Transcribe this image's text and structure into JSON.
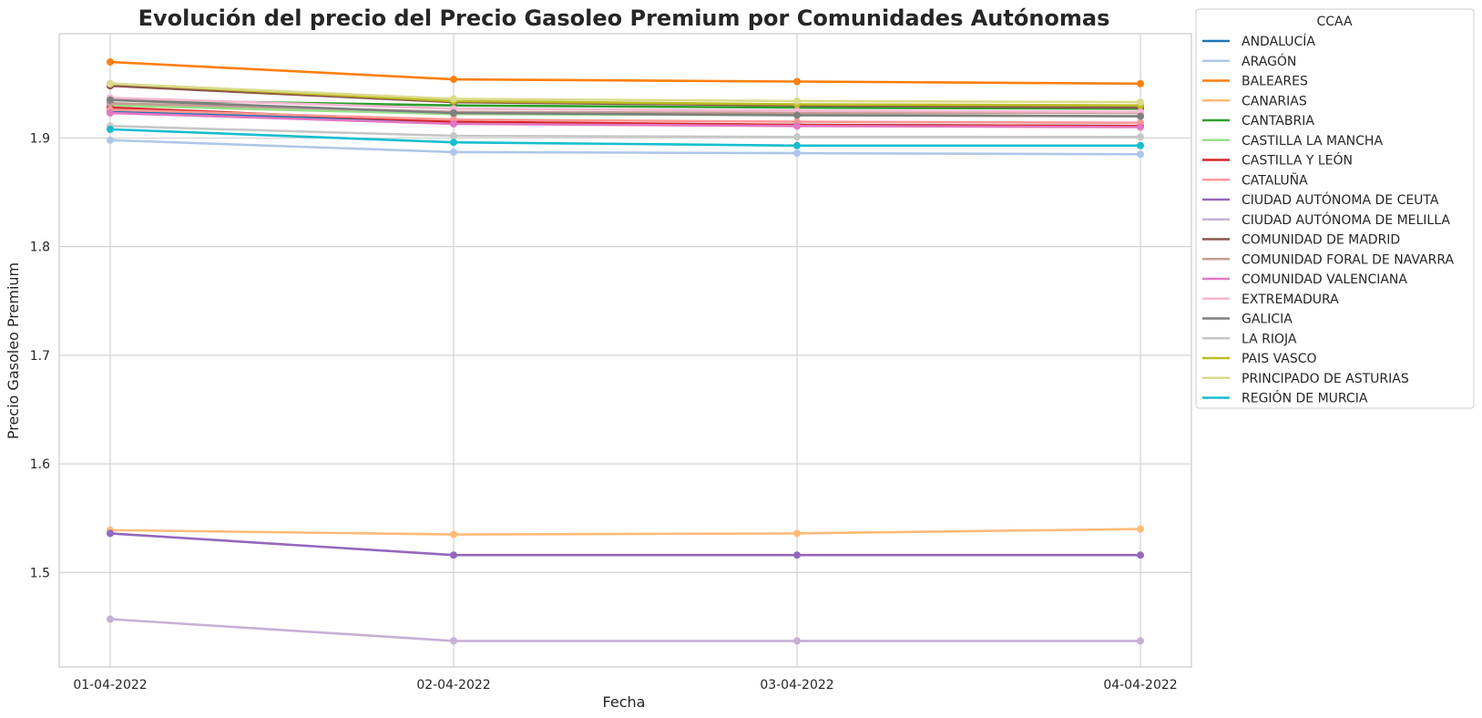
{
  "chart_data": {
    "type": "line",
    "title": "Evolución del precio del Precio Gasoleo Premium por Comunidades Autónomas",
    "xlabel": "Fecha",
    "ylabel": "Precio Gasoleo Premium",
    "x": [
      "01-04-2022",
      "02-04-2022",
      "03-04-2022",
      "04-04-2022"
    ],
    "ylim": [
      1.413,
      1.996
    ],
    "yticks": [
      "1.5",
      "1.6",
      "1.7",
      "1.8",
      "1.9"
    ],
    "grid": true,
    "markers": true,
    "legend": {
      "title": "CCAA",
      "placement": "outside-right"
    },
    "series": [
      {
        "name": "ANDALUCÍA",
        "color": "#1f77b4",
        "values": [
          1.925,
          1.914,
          1.912,
          1.911
        ]
      },
      {
        "name": "ARAGÓN",
        "color": "#aec7e8",
        "values": [
          1.898,
          1.887,
          1.886,
          1.885
        ]
      },
      {
        "name": "BALEARES",
        "color": "#ff7f0e",
        "values": [
          1.97,
          1.954,
          1.952,
          1.95
        ]
      },
      {
        "name": "CANARIAS",
        "color": "#ffbb78",
        "values": [
          1.539,
          1.535,
          1.536,
          1.54
        ]
      },
      {
        "name": "CANTABRIA",
        "color": "#2ca02c",
        "values": [
          1.935,
          1.93,
          1.928,
          1.927
        ]
      },
      {
        "name": "CASTILLA LA MANCHA",
        "color": "#98df8a",
        "values": [
          1.93,
          1.922,
          1.921,
          1.92
        ]
      },
      {
        "name": "CASTILLA Y LEÓN",
        "color": "#d62728",
        "values": [
          1.928,
          1.915,
          1.912,
          1.911
        ]
      },
      {
        "name": "CATALUÑA",
        "color": "#ff9896",
        "values": [
          1.926,
          1.917,
          1.915,
          1.914
        ]
      },
      {
        "name": "CIUDAD AUTÓNOMA DE CEUTA",
        "color": "#9467bd",
        "values": [
          1.536,
          1.516,
          1.516,
          1.516
        ]
      },
      {
        "name": "CIUDAD AUTÓNOMA DE MELILLA",
        "color": "#c5b0d5",
        "values": [
          1.457,
          1.437,
          1.437,
          1.437
        ]
      },
      {
        "name": "COMUNIDAD DE MADRID",
        "color": "#8c564b",
        "values": [
          1.948,
          1.933,
          1.93,
          1.928
        ]
      },
      {
        "name": "COMUNIDAD FORAL DE NAVARRA",
        "color": "#c49c94",
        "values": [
          1.932,
          1.924,
          1.923,
          1.923
        ]
      },
      {
        "name": "COMUNIDAD VALENCIANA",
        "color": "#e377c2",
        "values": [
          1.923,
          1.913,
          1.911,
          1.91
        ]
      },
      {
        "name": "EXTREMADURA",
        "color": "#f7b6d2",
        "values": [
          1.937,
          1.927,
          1.925,
          1.924
        ]
      },
      {
        "name": "GALICIA",
        "color": "#7f7f7f",
        "values": [
          1.935,
          1.923,
          1.921,
          1.92
        ]
      },
      {
        "name": "LA RIOJA",
        "color": "#c7c7c7",
        "values": [
          1.911,
          1.902,
          1.901,
          1.901
        ]
      },
      {
        "name": "PAIS VASCO",
        "color": "#bcbd22",
        "values": [
          1.95,
          1.934,
          1.931,
          1.93
        ]
      },
      {
        "name": "PRINCIPADO DE ASTURIAS",
        "color": "#dbdb8d",
        "values": [
          1.95,
          1.936,
          1.934,
          1.933
        ]
      },
      {
        "name": "REGIÓN DE MURCIA",
        "color": "#17becf",
        "values": [
          1.908,
          1.896,
          1.893,
          1.893
        ]
      }
    ]
  }
}
